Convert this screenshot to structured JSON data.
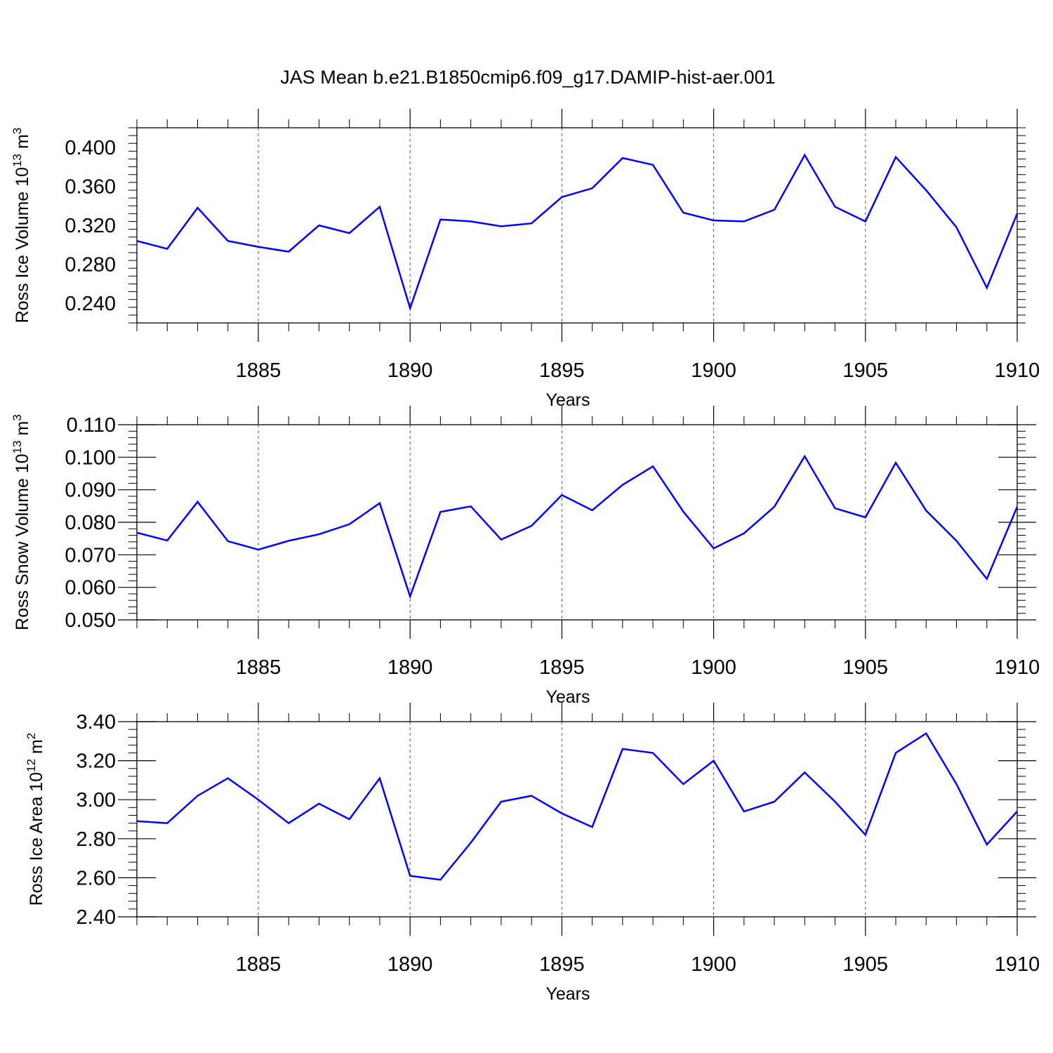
{
  "title": "JAS Mean b.e21.B1850cmip6.f09_g17.DAMIP-hist-aer.001",
  "colors": {
    "series": "#0000ff",
    "grid": "#555555",
    "axis": "#000000"
  },
  "chart_data": [
    {
      "type": "line",
      "xlabel": "Years",
      "ylabel_main": "Ross Ice Volume 10",
      "ylabel_exp": "13",
      "ylabel_unit": " m",
      "ylabel_unit_exp": "3",
      "xlim": [
        1881,
        1910
      ],
      "ylim": [
        0.22,
        0.42
      ],
      "xticks": [
        1885,
        1890,
        1895,
        1900,
        1905,
        1910
      ],
      "xtick_labels": [
        "1885",
        "1890",
        "1895",
        "1900",
        "1905",
        "1910"
      ],
      "yticks": [
        0.24,
        0.28,
        0.32,
        0.36,
        0.4
      ],
      "ytick_labels": [
        "0.240",
        "0.280",
        "0.320",
        "0.360",
        "0.400"
      ],
      "ygrid": false,
      "xgrid": "dashed",
      "x": [
        1881,
        1882,
        1883,
        1884,
        1885,
        1886,
        1887,
        1888,
        1889,
        1890,
        1891,
        1892,
        1893,
        1894,
        1895,
        1896,
        1897,
        1898,
        1899,
        1900,
        1901,
        1902,
        1903,
        1904,
        1905,
        1906,
        1907,
        1908,
        1909,
        1910
      ],
      "values": [
        0.304,
        0.296,
        0.338,
        0.304,
        0.298,
        0.293,
        0.32,
        0.312,
        0.339,
        0.235,
        0.326,
        0.324,
        0.319,
        0.322,
        0.349,
        0.358,
        0.389,
        0.382,
        0.333,
        0.325,
        0.324,
        0.336,
        0.392,
        0.339,
        0.324,
        0.39,
        0.356,
        0.318,
        0.256,
        0.332
      ]
    },
    {
      "type": "line",
      "xlabel": "Years",
      "ylabel_main": "Ross Snow Volume 10",
      "ylabel_exp": "13",
      "ylabel_unit": " m",
      "ylabel_unit_exp": "3",
      "xlim": [
        1881,
        1910
      ],
      "ylim": [
        0.05,
        0.11
      ],
      "xticks": [
        1885,
        1890,
        1895,
        1900,
        1905,
        1910
      ],
      "xtick_labels": [
        "1885",
        "1890",
        "1895",
        "1900",
        "1905",
        "1910"
      ],
      "yticks": [
        0.05,
        0.06,
        0.07,
        0.08,
        0.09,
        0.1,
        0.11
      ],
      "ytick_labels": [
        "0.050",
        "0.060",
        "0.070",
        "0.080",
        "0.090",
        "0.100",
        "0.110"
      ],
      "ygrid": false,
      "xgrid": "dashed",
      "x": [
        1881,
        1882,
        1883,
        1884,
        1885,
        1886,
        1887,
        1888,
        1889,
        1890,
        1891,
        1892,
        1893,
        1894,
        1895,
        1896,
        1897,
        1898,
        1899,
        1900,
        1901,
        1902,
        1903,
        1904,
        1905,
        1906,
        1907,
        1908,
        1909,
        1910
      ],
      "values": [
        0.0768,
        0.0744,
        0.0863,
        0.0742,
        0.0716,
        0.0743,
        0.0763,
        0.0794,
        0.0859,
        0.0572,
        0.0832,
        0.0849,
        0.0747,
        0.0789,
        0.0884,
        0.0837,
        0.0915,
        0.0972,
        0.0833,
        0.072,
        0.0766,
        0.0848,
        0.1003,
        0.0843,
        0.0815,
        0.0983,
        0.0836,
        0.0743,
        0.0626,
        0.0848
      ]
    },
    {
      "type": "line",
      "xlabel": "Years",
      "ylabel_main": "Ross Ice Area 10",
      "ylabel_exp": "12",
      "ylabel_unit": " m",
      "ylabel_unit_exp": "2",
      "xlim": [
        1881,
        1910
      ],
      "ylim": [
        2.4,
        3.4
      ],
      "xticks": [
        1885,
        1890,
        1895,
        1900,
        1905,
        1910
      ],
      "xtick_labels": [
        "1885",
        "1890",
        "1895",
        "1900",
        "1905",
        "1910"
      ],
      "yticks": [
        2.4,
        2.6,
        2.8,
        3.0,
        3.2,
        3.4
      ],
      "ytick_labels": [
        "2.40",
        "2.60",
        "2.80",
        "3.00",
        "3.20",
        "3.40"
      ],
      "ygrid": false,
      "xgrid": "dashed",
      "x": [
        1881,
        1882,
        1883,
        1884,
        1885,
        1886,
        1887,
        1888,
        1889,
        1890,
        1891,
        1892,
        1893,
        1894,
        1895,
        1896,
        1897,
        1898,
        1899,
        1900,
        1901,
        1902,
        1903,
        1904,
        1905,
        1906,
        1907,
        1908,
        1909,
        1910
      ],
      "values": [
        2.89,
        2.88,
        3.02,
        3.11,
        3.0,
        2.88,
        2.98,
        2.9,
        3.11,
        2.61,
        2.59,
        2.78,
        2.99,
        3.02,
        2.93,
        2.86,
        3.26,
        3.24,
        3.08,
        3.2,
        2.94,
        2.99,
        3.14,
        2.99,
        2.82,
        3.24,
        3.34,
        3.08,
        2.77,
        2.94
      ]
    }
  ]
}
